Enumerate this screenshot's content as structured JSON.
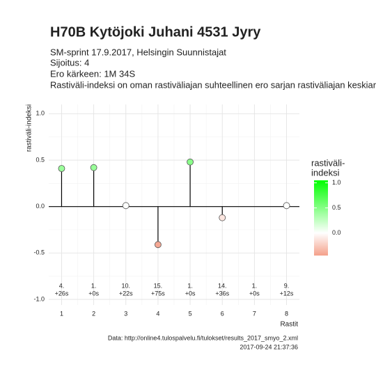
{
  "chart_data": {
    "type": "lollipop",
    "title": "H70B Kytöjoki Juhani 4531 Jyry",
    "subtitle": [
      "SM-sprint 17.9.2017, Helsingin Suunnistajat",
      "Sijoitus: 4",
      "Ero kärkeen: 1M 34S",
      "Rastiväli-indeksi on oman rastiväliajan suhteellinen ero sarjan rastiväliajan keskiar"
    ],
    "x": [
      1,
      2,
      3,
      4,
      5,
      6,
      7,
      8
    ],
    "values": [
      0.41,
      0.42,
      0.01,
      -0.41,
      0.48,
      -0.12,
      null,
      0.01
    ],
    "ranks": [
      "4.",
      "1.",
      "10.",
      "15.",
      "1.",
      "14.",
      "1.",
      "9."
    ],
    "diffs": [
      "+26s",
      "+0s",
      "+22s",
      "+75s",
      "+0s",
      "+36s",
      "+0s",
      "+12s"
    ],
    "xlim": [
      0.6,
      8.4
    ],
    "xticks": [
      1,
      2,
      3,
      4,
      5,
      6,
      7,
      8
    ],
    "ylim": [
      -1.06,
      1.1
    ],
    "yticks": [
      {
        "value": -1,
        "label": "-1.0"
      },
      {
        "value": -0.5,
        "label": "-0.5"
      },
      {
        "value": 0,
        "label": "0.0"
      },
      {
        "value": 0.5,
        "label": "0.5"
      },
      {
        "value": 1,
        "label": "1.0"
      }
    ],
    "ylabel": "rastiväli-indeksi",
    "xlabel": "Rastit",
    "grid": true,
    "legend_title": [
      "rastiväli-",
      "indeksi"
    ],
    "color_lim": [
      -0.45,
      1.05
    ],
    "color_ticks": [
      {
        "value": 0,
        "label": "0.0"
      },
      {
        "value": 0.5,
        "label": "0.5"
      },
      {
        "value": 1,
        "label": "1.0"
      }
    ],
    "colors": {
      "low": "#f4a08a",
      "mid": "#ffffff",
      "high": "#00ff00"
    },
    "caption": [
      "Data: http://online4.tulospalvelu.fi/tulokset/results_2017_smyo_2.xml",
      "2017-09-24 21:37:36"
    ]
  }
}
